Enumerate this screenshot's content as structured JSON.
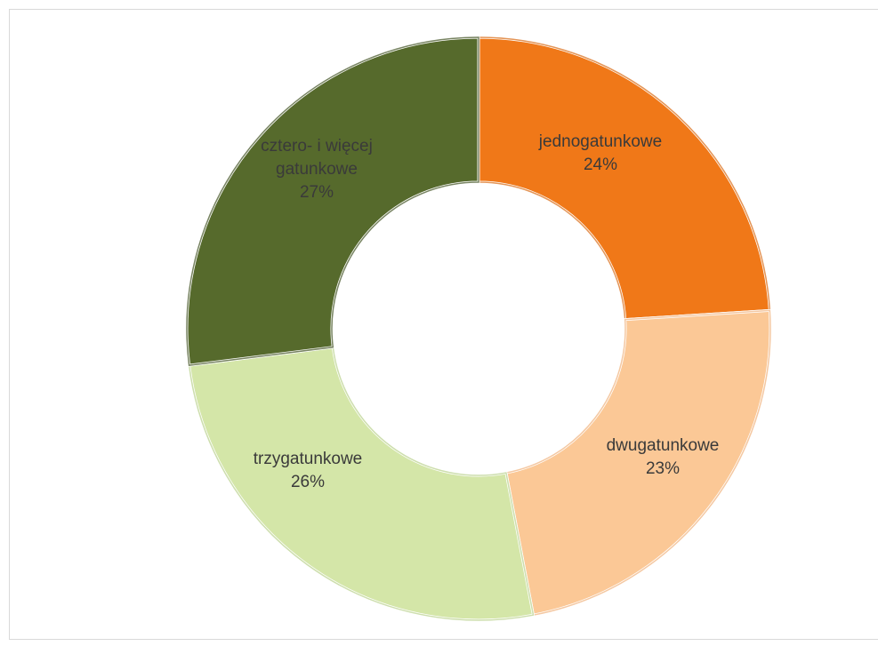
{
  "chart_data": {
    "type": "pie",
    "style": "donut",
    "title": "",
    "legend": "none",
    "categories": [
      "jednogatunkowe",
      "dwugatunkowe",
      "trzygatunkowe",
      "cztero- i więcej gatunkowe"
    ],
    "values": [
      24,
      23,
      26,
      27
    ],
    "value_suffix": "%",
    "labels": [
      {
        "lines": [
          "jednogatunkowe"
        ],
        "value_text": "24%"
      },
      {
        "lines": [
          "dwugatunkowe"
        ],
        "value_text": "23%"
      },
      {
        "lines": [
          "trzygatunkowe"
        ],
        "value_text": "26%"
      },
      {
        "lines": [
          "cztero- i więcej",
          "gatunkowe"
        ],
        "value_text": "27%"
      }
    ],
    "colors": [
      "#f07818",
      "#fbc896",
      "#d4e6a8",
      "#566a2c"
    ],
    "edge_colors": [
      "#d86810",
      "#f0b07a",
      "#b8d08a",
      "#3e5020"
    ]
  }
}
